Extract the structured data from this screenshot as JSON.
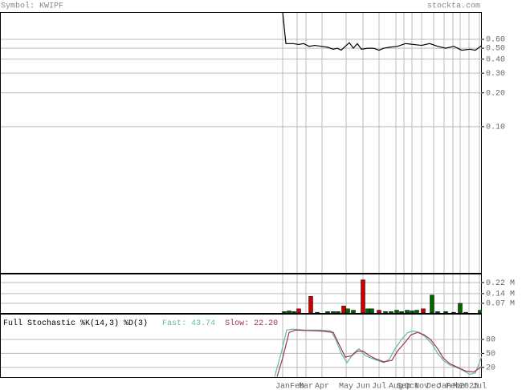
{
  "header": {
    "symbol": "Symbol: KWIPF",
    "site": "stockta.com"
  },
  "chart_data": [
    {
      "type": "line",
      "log_scale": true,
      "grid": true,
      "xlim": [
        0,
        600
      ],
      "ylim": [
        0.005,
        1.05
      ],
      "yticks": [
        {
          "value": 0.6,
          "label": "0.60"
        },
        {
          "value": 0.5,
          "label": "0.50"
        },
        {
          "value": 0.4,
          "label": "0.40"
        },
        {
          "value": 0.3,
          "label": "0.30"
        },
        {
          "value": 0.2,
          "label": "0.20"
        },
        {
          "value": 0.1,
          "label": "0.10"
        }
      ],
      "series": [
        {
          "color": "#000000",
          "x": [
            352,
            356,
            365,
            372,
            378,
            385,
            392,
            400,
            408,
            415,
            420,
            425,
            430,
            435,
            440,
            445,
            450,
            458,
            465,
            472,
            478,
            485,
            495,
            505,
            515,
            525,
            535,
            545,
            555,
            565,
            575,
            585,
            592,
            600
          ],
          "values": [
            1.05,
            0.55,
            0.55,
            0.54,
            0.55,
            0.52,
            0.53,
            0.52,
            0.51,
            0.49,
            0.5,
            0.48,
            0.52,
            0.56,
            0.5,
            0.55,
            0.49,
            0.5,
            0.5,
            0.48,
            0.5,
            0.51,
            0.52,
            0.55,
            0.54,
            0.53,
            0.55,
            0.52,
            0.5,
            0.52,
            0.48,
            0.49,
            0.48,
            0.53
          ]
        }
      ]
    },
    {
      "type": "bar",
      "grid": true,
      "xlim": [
        0,
        600
      ],
      "ylim": [
        0,
        0.285
      ],
      "yticks": [
        {
          "value": 0.22,
          "label": "0.22 M"
        },
        {
          "value": 0.14,
          "label": "0.14 M"
        },
        {
          "value": 0.07,
          "label": "0.07 M"
        }
      ],
      "series": [
        {
          "color": "#cc0000",
          "x": [
            372,
            387,
            428,
            452,
            472,
            527
          ],
          "values": [
            0.03,
            0.12,
            0.05,
            0.24,
            0.02,
            0.03
          ]
        },
        {
          "color": "#006600",
          "x": [
            354,
            360,
            366,
            395,
            408,
            415,
            421,
            433,
            440,
            458,
            463,
            480,
            487,
            494,
            500,
            507,
            513,
            519,
            538,
            545,
            555,
            565,
            573,
            580,
            598
          ],
          "values": [
            0.01,
            0.015,
            0.01,
            0.005,
            0.01,
            0.01,
            0.01,
            0.03,
            0.02,
            0.03,
            0.03,
            0.01,
            0.01,
            0.02,
            0.01,
            0.02,
            0.015,
            0.02,
            0.13,
            0.01,
            0.01,
            0.005,
            0.07,
            0.005,
            0.02
          ]
        }
      ]
    },
    {
      "type": "line",
      "title": "Full Stochastic %K(14,3) %D(3)",
      "grid": true,
      "xlim": [
        0,
        600
      ],
      "ylim": [
        -1,
        135
      ],
      "yticks": [
        80,
        50,
        20
      ],
      "xticks": [
        {
          "value": 352,
          "label": "Jan"
        },
        {
          "value": 370,
          "label": "Feb"
        },
        {
          "value": 381,
          "label": "Mar"
        },
        {
          "value": 401,
          "label": "Apr"
        },
        {
          "value": 431,
          "label": "May"
        },
        {
          "value": 452,
          "label": "Jun"
        },
        {
          "value": 472,
          "label": "Jul"
        },
        {
          "value": 493,
          "label": "Aug"
        },
        {
          "value": 503,
          "label": "Sep"
        },
        {
          "value": 513,
          "label": "Oct"
        },
        {
          "value": 525,
          "label": "Nov"
        },
        {
          "value": 540,
          "label": "Dec"
        },
        {
          "value": 553,
          "label": "Jan"
        },
        {
          "value": 564,
          "label": "Feb"
        },
        {
          "value": 573,
          "label": "Mar"
        },
        {
          "value": 584,
          "label": "2025"
        },
        {
          "value": 597,
          "label": "Jul"
        }
      ],
      "series": [
        {
          "name": "Fast:",
          "label": "43.74",
          "color": "#5fb8a8",
          "x": [
            342,
            350,
            357,
            365,
            380,
            400,
            412,
            418,
            425,
            432,
            440,
            447,
            455,
            462,
            470,
            478,
            485,
            492,
            500,
            508,
            515,
            522,
            530,
            538,
            545,
            552,
            560,
            568,
            575,
            585,
            592,
            600
          ],
          "values": [
            0,
            50,
            100,
            102,
            100,
            100,
            98,
            80,
            50,
            30,
            50,
            60,
            45,
            40,
            35,
            30,
            38,
            60,
            80,
            95,
            98,
            95,
            85,
            70,
            50,
            35,
            25,
            20,
            15,
            5,
            8,
            43.74
          ]
        },
        {
          "name": "Slow:",
          "label": "22.20",
          "color": "#a0305a",
          "x": [
            345,
            352,
            360,
            368,
            400,
            415,
            422,
            430,
            438,
            445,
            452,
            460,
            468,
            478,
            488,
            495,
            505,
            512,
            520,
            528,
            536,
            545,
            552,
            560,
            570,
            580,
            590,
            600
          ],
          "values": [
            0,
            40,
            95,
            100,
            98,
            95,
            70,
            42,
            45,
            55,
            55,
            45,
            38,
            32,
            35,
            55,
            75,
            90,
            95,
            90,
            80,
            60,
            40,
            28,
            20,
            12,
            10,
            22.2
          ]
        }
      ]
    }
  ]
}
